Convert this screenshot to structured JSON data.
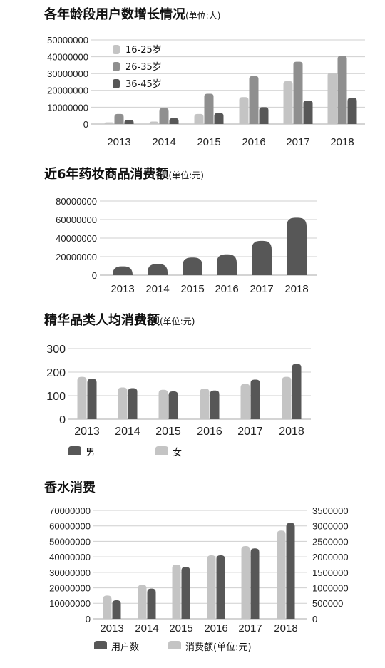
{
  "chart_data": [
    {
      "type": "bar",
      "title": "各年龄段用户数增长情况",
      "unit": "(单位:人)",
      "categories": [
        "2013",
        "2014",
        "2015",
        "2016",
        "2017",
        "2018"
      ],
      "yticks": [
        "50000000",
        "40000000",
        "30000000",
        "20000000",
        "10000000",
        "0"
      ],
      "ylim": [
        0,
        50000000
      ],
      "grid": true,
      "legend_position": "top-left",
      "colors": [
        "#c4c4c4",
        "#8f8f8f",
        "#575757"
      ],
      "series": [
        {
          "name": "16-25岁",
          "values": [
            1000000,
            1500000,
            6000000,
            16000000,
            25500000,
            30500000
          ]
        },
        {
          "name": "26-35岁",
          "values": [
            6000000,
            9500000,
            18000000,
            28500000,
            37000000,
            40500000
          ]
        },
        {
          "name": "36-45岁",
          "values": [
            2500000,
            3500000,
            6500000,
            10000000,
            14000000,
            15500000
          ]
        }
      ]
    },
    {
      "type": "bar",
      "title": "近6年药妆商品消费额",
      "unit": "(单位:元)",
      "categories": [
        "2013",
        "2014",
        "2015",
        "2016",
        "2017",
        "2018"
      ],
      "yticks": [
        "80000000",
        "60000000",
        "40000000",
        "20000000",
        "0"
      ],
      "ylim": [
        0,
        80000000
      ],
      "grid": true,
      "colors": [
        "#575757"
      ],
      "series": [
        {
          "values": [
            9500000,
            12000000,
            19000000,
            22500000,
            37000000,
            62000000
          ]
        }
      ]
    },
    {
      "type": "bar",
      "title": "精华品类人均消费额",
      "unit": "(单位:元)",
      "categories": [
        "2013",
        "2014",
        "2015",
        "2016",
        "2017",
        "2018"
      ],
      "yticks": [
        "300",
        "200",
        "100",
        "0"
      ],
      "ylim": [
        0,
        300
      ],
      "grid": true,
      "legend_position": "bottom",
      "colors": [
        "#c4c4c4",
        "#575757"
      ],
      "series": [
        {
          "name": "女",
          "values": [
            180,
            135,
            125,
            130,
            150,
            180
          ]
        },
        {
          "name": "男",
          "values": [
            172,
            132,
            118,
            122,
            168,
            235
          ]
        }
      ],
      "legend_order": [
        "男",
        "女"
      ]
    },
    {
      "type": "bar",
      "title": "香水消费",
      "categories": [
        "2013",
        "2014",
        "2015",
        "2016",
        "2017",
        "2018"
      ],
      "yticks": [
        "70000000",
        "60000000",
        "50000000",
        "40000000",
        "30000000",
        "20000000",
        "10000000",
        "0"
      ],
      "yticks_right": [
        "3500000",
        "3000000",
        "2500000",
        "2000000",
        "1500000",
        "1000000",
        "500000",
        "0"
      ],
      "ylim": [
        0,
        70000000
      ],
      "ylim_right": [
        0,
        3500000
      ],
      "grid": true,
      "legend_position": "bottom",
      "colors": [
        "#c4c4c4",
        "#575757"
      ],
      "series": [
        {
          "name": "消费额(单位:元)",
          "axis": "right",
          "values": [
            750000,
            1100000,
            1750000,
            2050000,
            2350000,
            2850000
          ]
        },
        {
          "name": "用户数",
          "axis": "left",
          "values": [
            12000000,
            19500000,
            33500000,
            41000000,
            45500000,
            62000000
          ]
        }
      ],
      "legend_order": [
        "用户数",
        "消费额(单位:元)"
      ]
    }
  ]
}
